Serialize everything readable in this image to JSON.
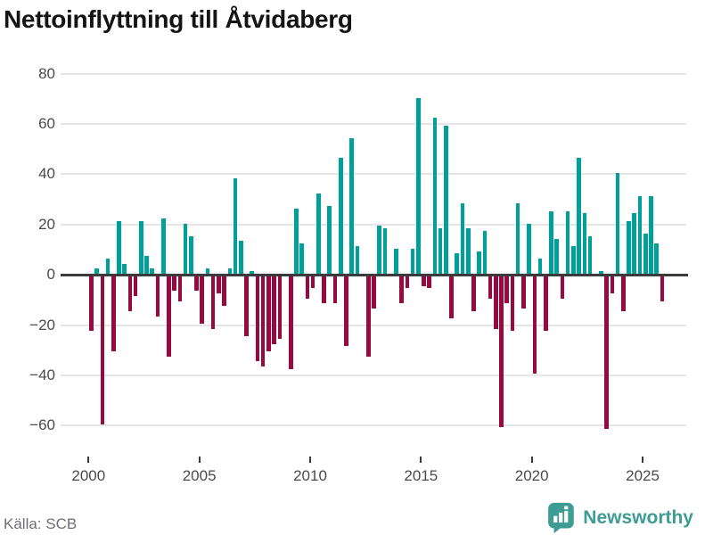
{
  "title": "Nettoinflyttning till Åtvidaberg",
  "source": "Källa: SCB",
  "branding": {
    "name": "Newsworthy",
    "icon": "bar-chart-speech-bubble-icon"
  },
  "colors": {
    "positive": "#00A09A",
    "negative": "#98093F",
    "axis": "#3B3B3B",
    "grid": "#E5E5E5",
    "tick_label": "#4A4A4A",
    "source_text": "#6E6E78",
    "brand": "#3D9C94",
    "title_text": "#141414",
    "background": "#FFFFFF"
  },
  "chart_data": {
    "type": "bar",
    "title": "Nettoinflyttning till Åtvidaberg",
    "frequency": "quarterly",
    "x_start": "2000 Q1",
    "x_end": "2025 Q4",
    "categories": [
      "2000 Q1",
      "2000 Q2",
      "2000 Q3",
      "2000 Q4",
      "2001 Q1",
      "2001 Q2",
      "2001 Q3",
      "2001 Q4",
      "2002 Q1",
      "2002 Q2",
      "2002 Q3",
      "2002 Q4",
      "2003 Q1",
      "2003 Q2",
      "2003 Q3",
      "2003 Q4",
      "2004 Q1",
      "2004 Q2",
      "2004 Q3",
      "2004 Q4",
      "2005 Q1",
      "2005 Q2",
      "2005 Q3",
      "2005 Q4",
      "2006 Q1",
      "2006 Q2",
      "2006 Q3",
      "2006 Q4",
      "2007 Q1",
      "2007 Q2",
      "2007 Q3",
      "2007 Q4",
      "2008 Q1",
      "2008 Q2",
      "2008 Q3",
      "2008 Q4",
      "2009 Q1",
      "2009 Q2",
      "2009 Q3",
      "2009 Q4",
      "2010 Q1",
      "2010 Q2",
      "2010 Q3",
      "2010 Q4",
      "2011 Q1",
      "2011 Q2",
      "2011 Q3",
      "2011 Q4",
      "2012 Q1",
      "2012 Q2",
      "2012 Q3",
      "2012 Q4",
      "2013 Q1",
      "2013 Q2",
      "2013 Q3",
      "2013 Q4",
      "2014 Q1",
      "2014 Q2",
      "2014 Q3",
      "2014 Q4",
      "2015 Q1",
      "2015 Q2",
      "2015 Q3",
      "2015 Q4",
      "2016 Q1",
      "2016 Q2",
      "2016 Q3",
      "2016 Q4",
      "2017 Q1",
      "2017 Q2",
      "2017 Q3",
      "2017 Q4",
      "2018 Q1",
      "2018 Q2",
      "2018 Q3",
      "2018 Q4",
      "2019 Q1",
      "2019 Q2",
      "2019 Q3",
      "2019 Q4",
      "2020 Q1",
      "2020 Q2",
      "2020 Q3",
      "2020 Q4",
      "2021 Q1",
      "2021 Q2",
      "2021 Q3",
      "2021 Q4",
      "2022 Q1",
      "2022 Q2",
      "2022 Q3",
      "2022 Q4",
      "2023 Q1",
      "2023 Q2",
      "2023 Q3",
      "2023 Q4",
      "2024 Q1",
      "2024 Q2",
      "2024 Q3",
      "2024 Q4",
      "2025 Q1",
      "2025 Q2",
      "2025 Q3",
      "2025 Q4"
    ],
    "values": [
      -22,
      2,
      -59,
      6,
      -30,
      21,
      4,
      -14,
      -8,
      21,
      7,
      2,
      -16,
      22,
      -32,
      -6,
      -10,
      20,
      15,
      -6,
      -19,
      2,
      -21,
      -7,
      -12,
      2,
      38,
      13,
      -24,
      1,
      -34,
      -36,
      -30,
      -27,
      -25,
      0,
      -37,
      26,
      12,
      -9,
      -5,
      32,
      -11,
      27,
      -11,
      46,
      -28,
      54,
      11,
      0,
      -32,
      -13,
      19,
      18,
      0,
      10,
      -11,
      -5,
      10,
      70,
      -4,
      -5,
      62,
      18,
      59,
      -17,
      8,
      28,
      18,
      -14,
      9,
      17,
      -9,
      -21,
      -60,
      -11,
      -22,
      28,
      -13,
      20,
      -39,
      6,
      -22,
      25,
      14,
      -9,
      25,
      11,
      46,
      24,
      15,
      0,
      1,
      -61,
      -7,
      40,
      -14,
      21,
      24,
      31,
      16,
      31,
      12,
      -10
    ],
    "yticks": [
      80,
      60,
      40,
      20,
      0,
      -20,
      -40,
      -60
    ],
    "ylim": [
      -66,
      84
    ],
    "xticks": [
      "2000",
      "2005",
      "2010",
      "2015",
      "2020",
      "2025"
    ],
    "xlabel": "",
    "ylabel": "",
    "grid": "horizontal",
    "legend": "none"
  }
}
